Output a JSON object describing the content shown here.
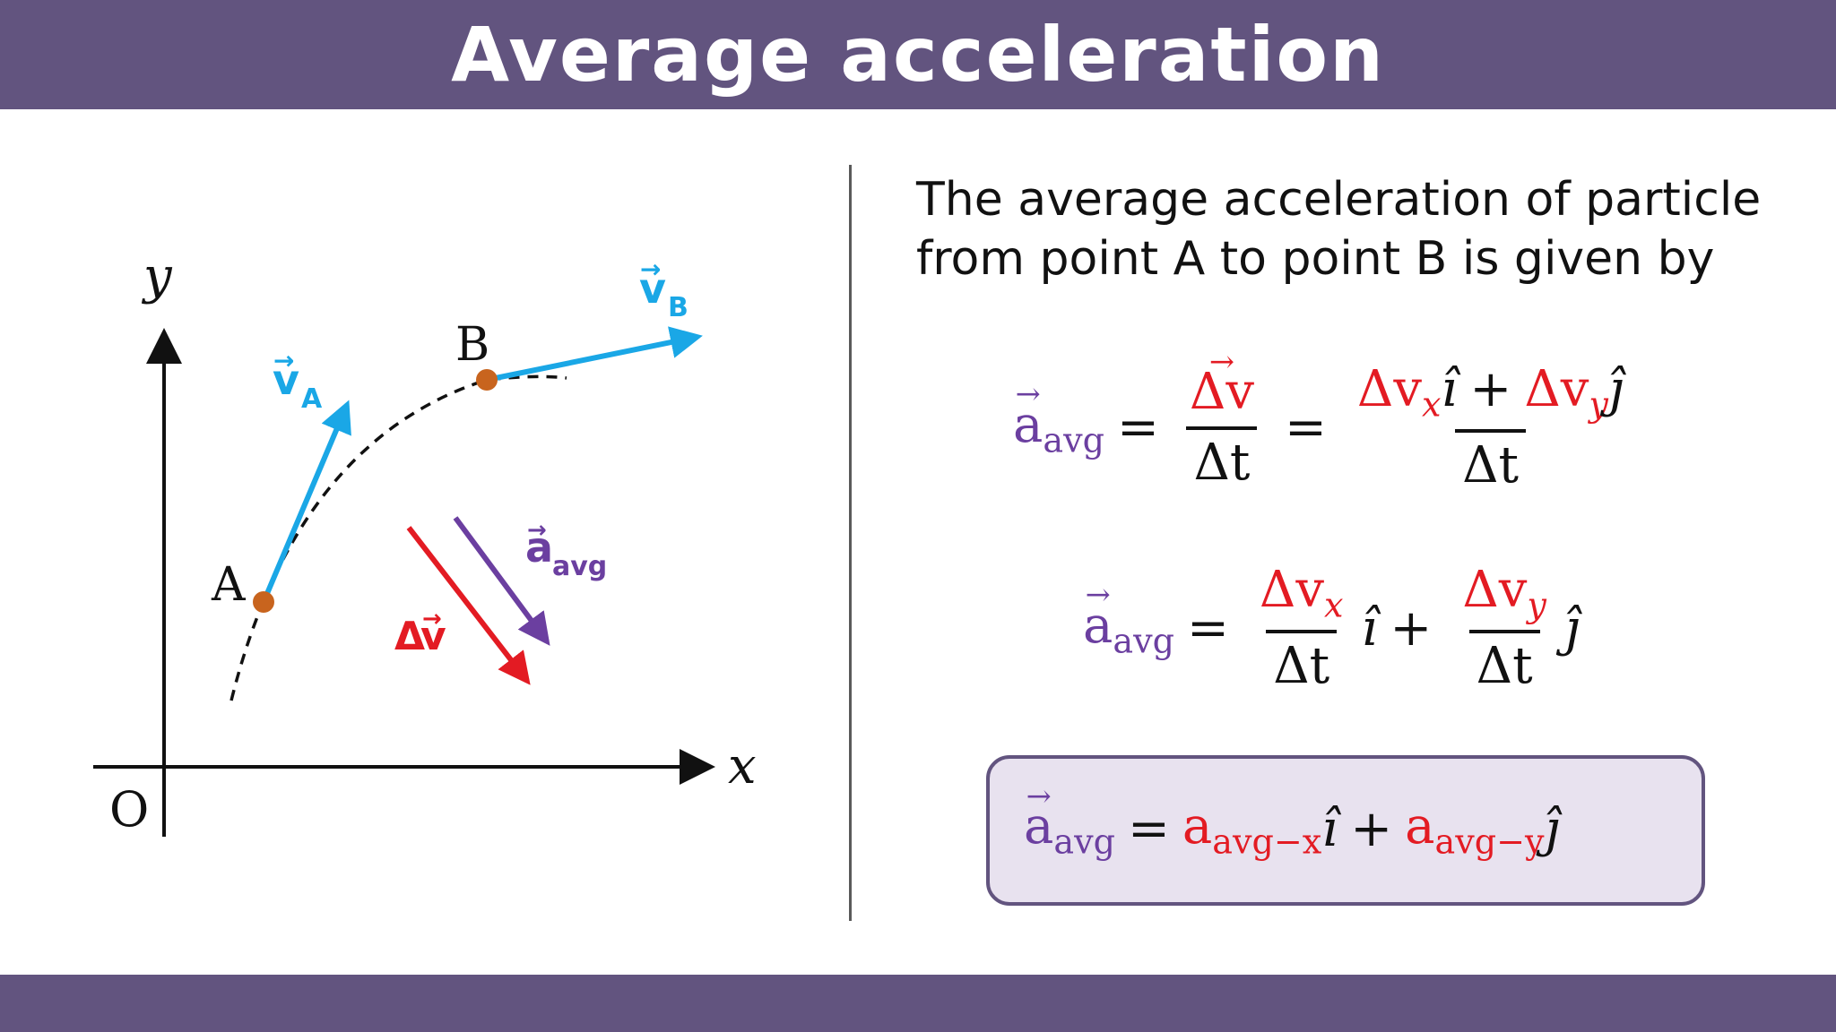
{
  "header": {
    "title": "Average acceleration"
  },
  "diagram": {
    "labels": {
      "y_axis": "y",
      "x_axis": "x",
      "origin": "O",
      "point_a": "A",
      "point_b": "B",
      "v": "v",
      "sub_a": "A",
      "sub_b": "B",
      "a": "a",
      "avg": "avg",
      "delta": "Δ"
    },
    "colors": {
      "velocity": "#1aa7e6",
      "delta_v": "#e31b23",
      "a_avg": "#6b3fa0",
      "points": "#c8641e"
    }
  },
  "text": {
    "line1": "The average acceleration of particle",
    "line2": "from point A to point B is given by"
  },
  "equations": {
    "a": "a",
    "avg": "avg",
    "equals": "=",
    "plus": "+",
    "delta_v": "Δv",
    "delta_t": "Δt",
    "x": "x",
    "y": "y",
    "i_hat": "î",
    "j_hat": "ĵ",
    "avg_x": "avg−x",
    "avg_y": "avg−y"
  }
}
